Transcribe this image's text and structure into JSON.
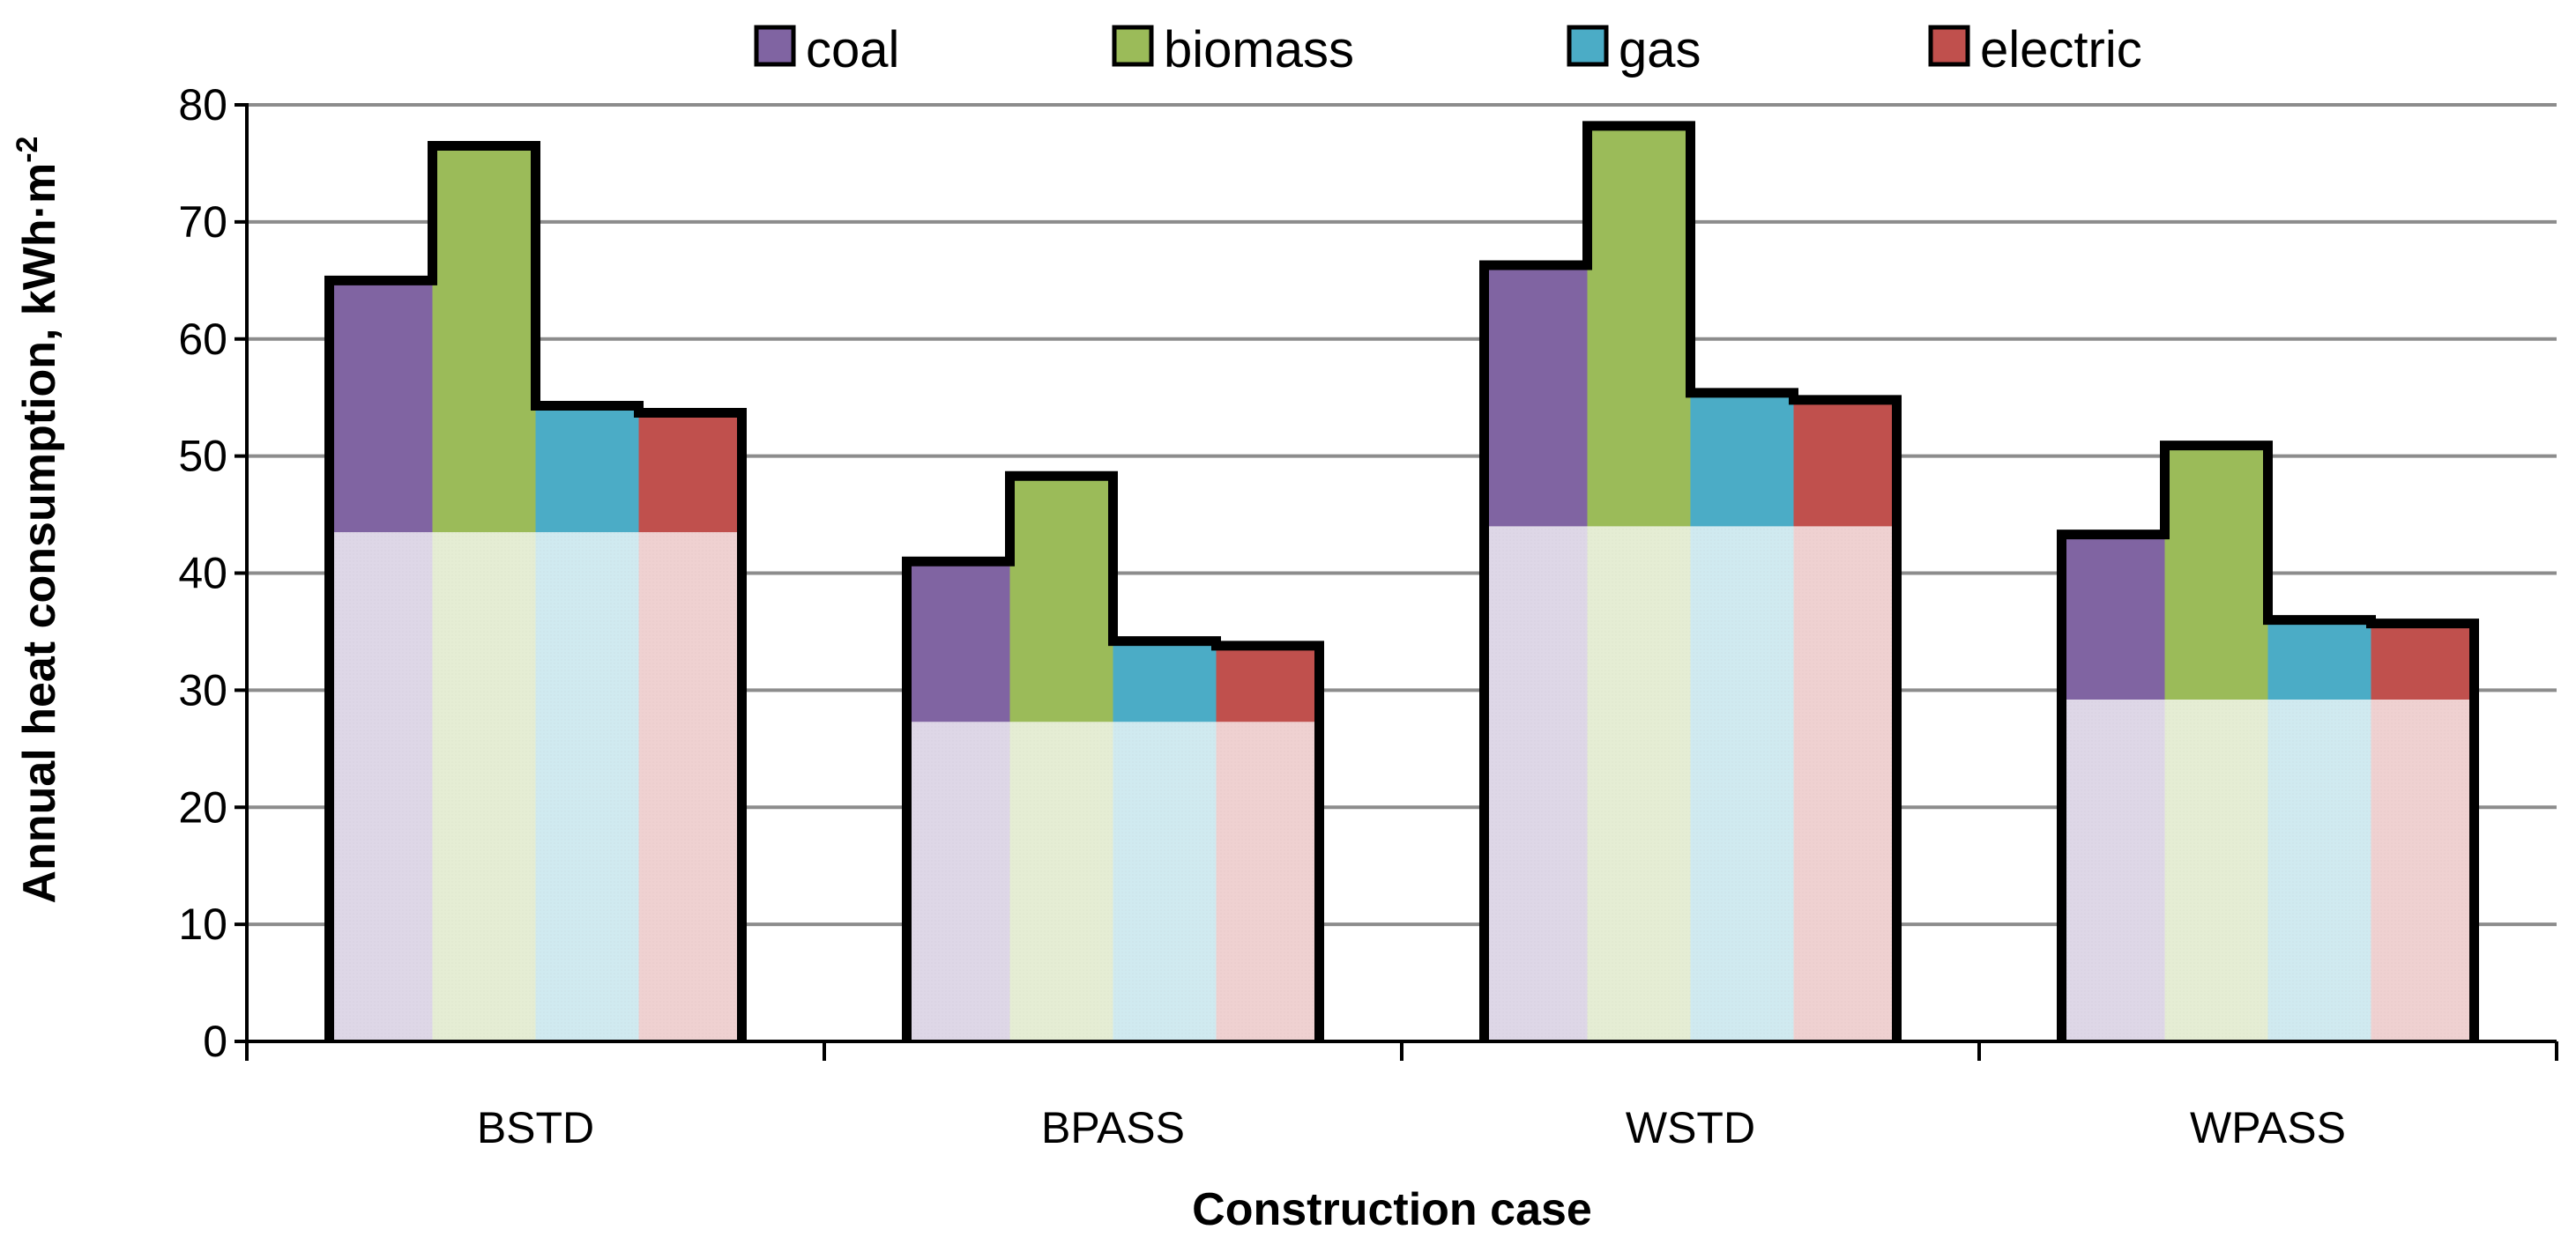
{
  "chart_data": {
    "type": "bar",
    "title": "",
    "xlabel": "Construction case",
    "ylabel": "Annual heat consumption, kWh·m",
    "ylabel_superscript": "-2",
    "ylim": [
      0,
      80
    ],
    "yticks": [
      0,
      10,
      20,
      30,
      40,
      50,
      60,
      70,
      80
    ],
    "grid": true,
    "legend_position": "top",
    "categories": [
      "BSTD",
      "BPASS",
      "WSTD",
      "WPASS"
    ],
    "base_values": [
      43.5,
      27.3,
      44.0,
      29.2
    ],
    "series": [
      {
        "name": "coal",
        "color": "#8064A2",
        "values": [
          65.0,
          41.0,
          66.3,
          43.3
        ]
      },
      {
        "name": "biomass",
        "color": "#9BBB59",
        "values": [
          76.5,
          48.3,
          78.2,
          50.9
        ]
      },
      {
        "name": "gas",
        "color": "#4BACC6",
        "values": [
          54.3,
          34.2,
          55.4,
          36.0
        ]
      },
      {
        "name": "electric",
        "color": "#C0504D",
        "values": [
          53.7,
          33.8,
          54.8,
          35.7
        ]
      }
    ]
  }
}
